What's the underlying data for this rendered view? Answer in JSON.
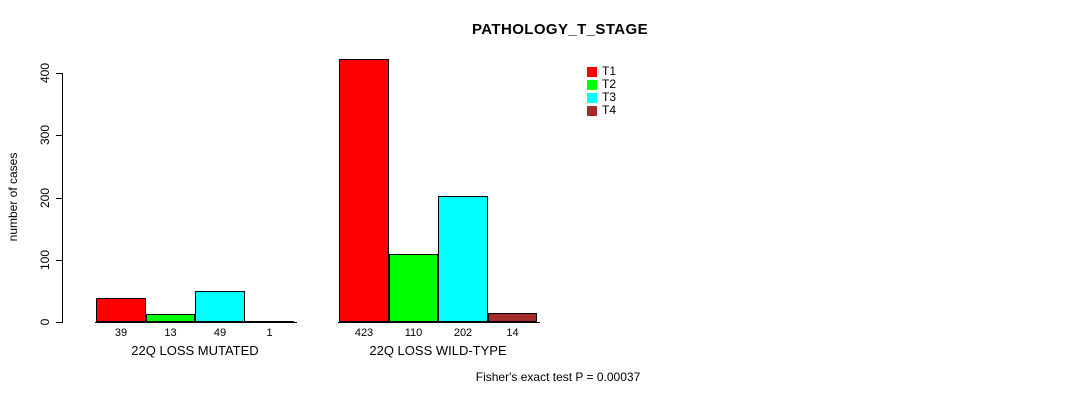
{
  "chart_data": {
    "type": "bar",
    "title": "PATHOLOGY_T_STAGE",
    "ylabel": "number of cases",
    "xlabel": "",
    "ylim": [
      0,
      400
    ],
    "yticks": [
      0,
      100,
      200,
      300,
      400
    ],
    "categories": [
      "22Q LOSS MUTATED",
      "22Q LOSS WILD-TYPE"
    ],
    "series": [
      {
        "name": "T1",
        "color": "#ff0000",
        "values": [
          39,
          423
        ]
      },
      {
        "name": "T2",
        "color": "#00ff00",
        "values": [
          13,
          110
        ]
      },
      {
        "name": "T3",
        "color": "#00ffff",
        "values": [
          49,
          202
        ]
      },
      {
        "name": "T4",
        "color": "#a52a2a",
        "values": [
          1,
          14
        ]
      }
    ],
    "bar_value_labels": [
      [
        "39",
        "13",
        "49",
        "1"
      ],
      [
        "423",
        "110",
        "202",
        "14"
      ]
    ],
    "legend_position": "top-right",
    "grid": false,
    "caption": "Fisher's exact test P = 0.00037"
  }
}
